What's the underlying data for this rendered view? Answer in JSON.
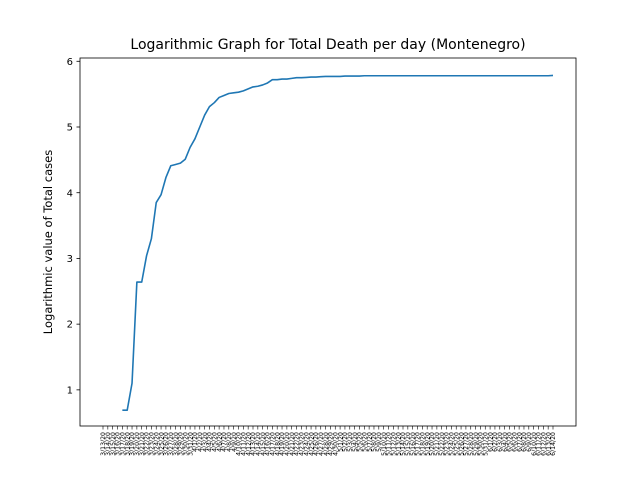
{
  "chart_data": {
    "type": "line",
    "title": "Logarithmic Graph for Total Death per day (Montenegro)",
    "xlabel": "",
    "ylabel": "Logarithmic value of Total cases",
    "yticks": [
      1,
      2,
      3,
      4,
      5,
      6
    ],
    "ylim": [
      0.45,
      6.05
    ],
    "grid": false,
    "legend": "none",
    "line_color": "#1f77b4",
    "x_start": "3/13/20",
    "x_end": "6/14/20",
    "x": [
      "3/13/20",
      "3/14/20",
      "3/15/20",
      "3/16/20",
      "3/17/20",
      "3/18/20",
      "3/19/20",
      "3/20/20",
      "3/21/20",
      "3/22/20",
      "3/23/20",
      "3/24/20",
      "3/25/20",
      "3/26/20",
      "3/27/20",
      "3/28/20",
      "3/29/20",
      "3/30/20",
      "3/31/20",
      "4/1/20",
      "4/2/20",
      "4/3/20",
      "4/4/20",
      "4/5/20",
      "4/6/20",
      "4/7/20",
      "4/8/20",
      "4/9/20",
      "4/10/20",
      "4/11/20",
      "4/12/20",
      "4/13/20",
      "4/14/20",
      "4/15/20",
      "4/16/20",
      "4/17/20",
      "4/18/20",
      "4/19/20",
      "4/20/20",
      "4/21/20",
      "4/22/20",
      "4/23/20",
      "4/24/20",
      "4/25/20",
      "4/26/20",
      "4/27/20",
      "4/28/20",
      "4/29/20",
      "4/30/20",
      "5/1/20",
      "5/2/20",
      "5/3/20",
      "5/4/20",
      "5/5/20",
      "5/6/20",
      "5/7/20",
      "5/8/20",
      "5/9/20",
      "5/10/20",
      "5/11/20",
      "5/12/20",
      "5/13/20",
      "5/14/20",
      "5/15/20",
      "5/16/20",
      "5/17/20",
      "5/18/20",
      "5/19/20",
      "5/20/20",
      "5/21/20",
      "5/22/20",
      "5/23/20",
      "5/24/20",
      "5/25/20",
      "5/26/20",
      "5/27/20",
      "5/28/20",
      "5/29/20",
      "5/30/20",
      "5/31/20",
      "6/1/20",
      "6/2/20",
      "6/3/20",
      "6/4/20",
      "6/5/20",
      "6/6/20",
      "6/7/20",
      "6/8/20",
      "6/9/20",
      "6/10/20",
      "6/11/20",
      "6/12/20",
      "6/13/20",
      "6/14/20"
    ],
    "x_tick_labels": [
      "3/13/20",
      "3/14/20",
      "3/15/20",
      "3/16/20",
      "3/17/20",
      "3/18/20",
      "3/19/20",
      "3/20/20",
      "3/21/20",
      "3/22/20",
      "3/23/20",
      "3/24/20",
      "3/25/20",
      "3/26/20",
      "3/27/20",
      "3/28/20",
      "3/29/20",
      "3/30/20",
      "3/31/20",
      "4/1/20",
      "4/2/20",
      "4/3/20",
      "4/4/20",
      "4/5/20",
      "4/6/20",
      "4/7/20",
      "4/8/20",
      "4/9/20",
      "4/10/20",
      "4/11/20",
      "4/12/20",
      "4/13/20",
      "4/14/20",
      "4/15/20",
      "4/16/20",
      "4/17/20",
      "4/18/20",
      "4/19/20",
      "4/20/20",
      "4/21/20",
      "4/22/20",
      "4/23/20",
      "4/24/20",
      "4/25/20",
      "4/26/20",
      "4/27/20",
      "4/28/20",
      "4/29/20",
      "4/30/20",
      "5/1/20",
      "5/2/20",
      "5/3/20",
      "5/4/20",
      "5/5/20",
      "5/6/20",
      "5/7/20",
      "5/8/20",
      "5/9/20",
      "5/10/20",
      "5/11/20",
      "5/12/20",
      "5/13/20",
      "5/14/20",
      "5/15/20",
      "5/16/20",
      "5/17/20",
      "5/18/20",
      "5/19/20",
      "5/20/20",
      "5/21/20",
      "5/22/20",
      "5/23/20",
      "5/24/20",
      "5/25/20",
      "5/26/20",
      "5/27/20",
      "5/28/20",
      "5/29/20",
      "5/30/20",
      "5/31/20",
      "6/1/20",
      "6/2/20",
      "6/3/20",
      "6/4/20",
      "6/5/20",
      "6/6/20",
      "6/7/20",
      "6/8/20",
      "6/9/20",
      "6/10/20",
      "6/11/20",
      "6/12/20",
      "6/13/20",
      "6/14/20"
    ],
    "series": [
      {
        "values": [
          null,
          null,
          null,
          null,
          0.69,
          0.69,
          1.1,
          2.64,
          2.64,
          3.04,
          3.3,
          3.85,
          3.97,
          4.23,
          4.41,
          4.43,
          4.45,
          4.51,
          4.69,
          4.82,
          5.0,
          5.18,
          5.31,
          5.37,
          5.45,
          5.48,
          5.51,
          5.52,
          5.53,
          5.55,
          5.58,
          5.61,
          5.62,
          5.64,
          5.67,
          5.72,
          5.72,
          5.73,
          5.73,
          5.74,
          5.75,
          5.75,
          5.755,
          5.76,
          5.76,
          5.765,
          5.77,
          5.77,
          5.77,
          5.77,
          5.775,
          5.775,
          5.775,
          5.775,
          5.78,
          5.78,
          5.78,
          5.78,
          5.78,
          5.78,
          5.78,
          5.78,
          5.78,
          5.78,
          5.78,
          5.78,
          5.78,
          5.78,
          5.78,
          5.78,
          5.78,
          5.78,
          5.78,
          5.78,
          5.78,
          5.78,
          5.78,
          5.78,
          5.78,
          5.78,
          5.78,
          5.78,
          5.78,
          5.78,
          5.78,
          5.78,
          5.78,
          5.78,
          5.78,
          5.78,
          5.78,
          5.78,
          5.78,
          5.785
        ]
      }
    ]
  }
}
